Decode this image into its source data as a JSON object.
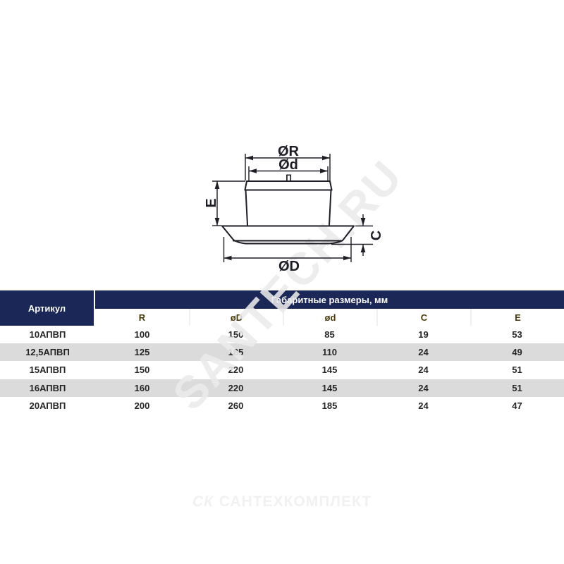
{
  "watermark": {
    "text": "SANTECH.RU"
  },
  "diagram": {
    "labels": {
      "outer_top": "ØR",
      "inner_top": "Ød",
      "knob": "П",
      "height": "E",
      "flange_height": "C",
      "bottom": "ØD"
    }
  },
  "table": {
    "article_header": "Артикул",
    "group_header": "Габаритные размеры, мм",
    "columns": [
      "R",
      "øD",
      "ød",
      "C",
      "E"
    ],
    "rows": [
      {
        "article": "10АПВП",
        "values": [
          "100",
          "150",
          "85",
          "19",
          "53"
        ]
      },
      {
        "article": "12,5АПВП",
        "values": [
          "125",
          "185",
          "110",
          "24",
          "49"
        ]
      },
      {
        "article": "15АПВП",
        "values": [
          "150",
          "220",
          "145",
          "24",
          "51"
        ]
      },
      {
        "article": "16АПВП",
        "values": [
          "160",
          "220",
          "145",
          "24",
          "51"
        ]
      },
      {
        "article": "20АПВП",
        "values": [
          "200",
          "260",
          "185",
          "24",
          "47"
        ]
      }
    ]
  },
  "footer": {
    "monogram": "СК",
    "brand": "САНТЕХКОМПЛЕКТ"
  },
  "colors": {
    "navy": "#1a2757",
    "row_gray": "#dbdbdb",
    "line": "#1d1d26",
    "watermark": "#ebebeb",
    "subheader_text": "#4a3b0e"
  }
}
